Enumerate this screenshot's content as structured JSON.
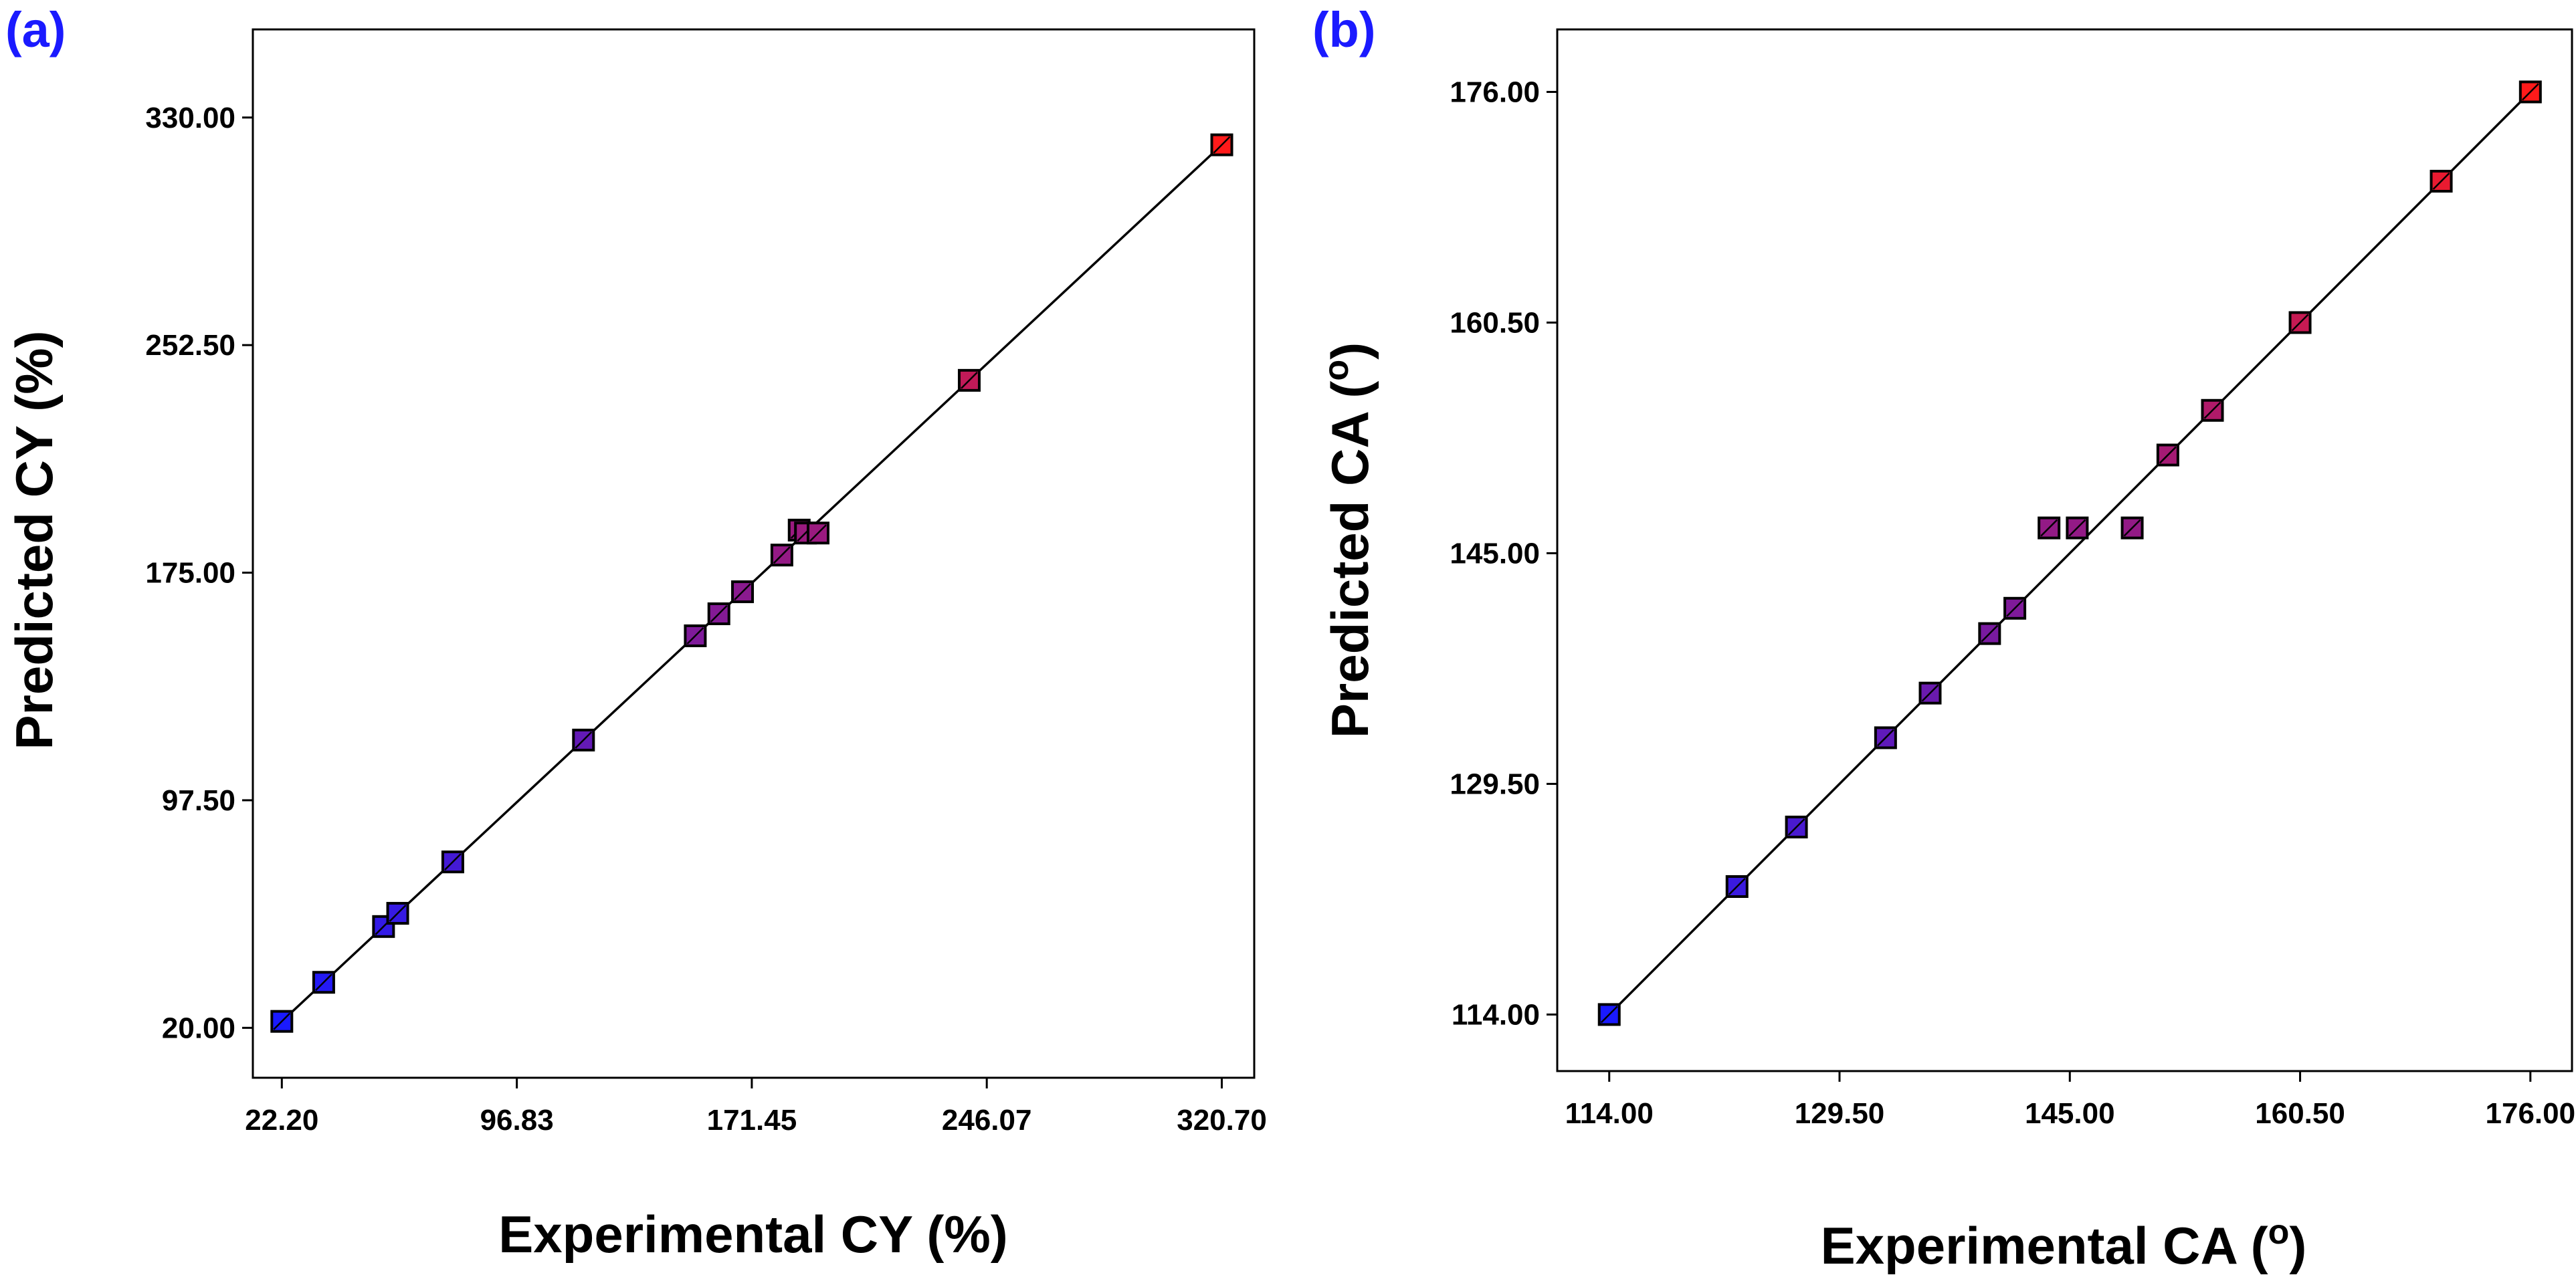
{
  "chart_data": [
    {
      "type": "scatter",
      "panel_label": "(a)",
      "xlabel": "Experimental CY (%)",
      "ylabel": "Predicted CY (%)",
      "xticks": [
        "22.20",
        "96.83",
        "171.45",
        "246.07",
        "320.70"
      ],
      "yticks": [
        "20.00",
        "97.50",
        "175.00",
        "252.50",
        "330.00"
      ],
      "xlim": [
        13,
        331
      ],
      "ylim": [
        3,
        360
      ],
      "fit_line": [
        [
          22.2,
          22.2
        ],
        [
          320.7,
          320.7
        ]
      ],
      "x": [
        22.2,
        35.5,
        54.5,
        59,
        76.5,
        118,
        153.5,
        161,
        168.5,
        181,
        186.5,
        188.5,
        192.5,
        240.5,
        320.7
      ],
      "y": [
        22.2,
        35.5,
        54.5,
        59,
        76.5,
        118,
        153.5,
        161,
        168.5,
        181,
        189.5,
        188.5,
        188.5,
        240.5,
        320.7
      ]
    },
    {
      "type": "scatter",
      "panel_label": "(b)",
      "xlabel": "Experimental CA (",
      "ylabel": "Predicted CA (",
      "unit_symbol": "o",
      "xticks": [
        "114.00",
        "129.50",
        "145.00",
        "160.50",
        "176.00"
      ],
      "yticks": [
        "114.00",
        "129.50",
        "145.00",
        "160.50",
        "176.00"
      ],
      "xlim": [
        110.5,
        178.8
      ],
      "ylim": [
        110.2,
        180.2
      ],
      "fit_line": [
        [
          114,
          114
        ],
        [
          176,
          176
        ]
      ],
      "x": [
        114,
        122.6,
        126.6,
        132.6,
        135.6,
        139.6,
        141.3,
        143.6,
        145.5,
        149.2,
        151.6,
        154.6,
        160.5,
        170,
        176
      ],
      "y": [
        114,
        122.6,
        126.6,
        132.6,
        135.6,
        139.6,
        141.3,
        146.7,
        146.7,
        146.7,
        151.6,
        154.6,
        160.5,
        170,
        176
      ]
    }
  ],
  "colors": {
    "panel_label": "#1a1aff",
    "low": "#1a1aff",
    "high": "#ff1a1a"
  }
}
